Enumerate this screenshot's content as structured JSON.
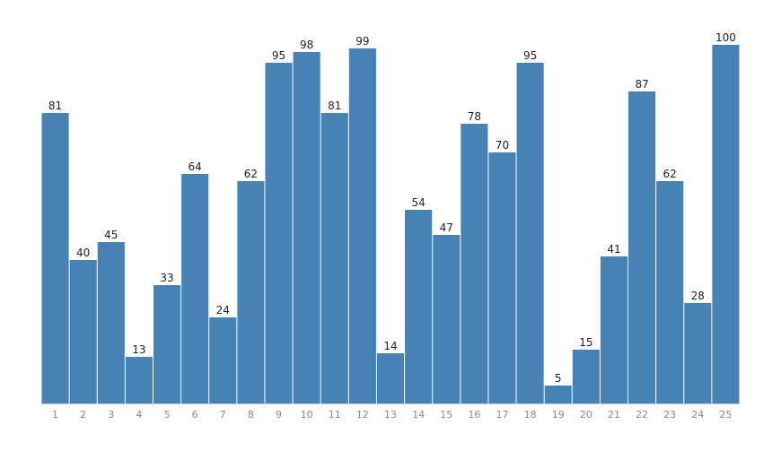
{
  "chart_data": {
    "type": "bar",
    "categories": [
      "1",
      "2",
      "3",
      "4",
      "5",
      "6",
      "7",
      "8",
      "9",
      "10",
      "11",
      "12",
      "13",
      "14",
      "15",
      "16",
      "17",
      "18",
      "19",
      "20",
      "21",
      "22",
      "23",
      "24",
      "25"
    ],
    "values": [
      81,
      40,
      45,
      13,
      33,
      64,
      24,
      62,
      95,
      98,
      81,
      99,
      14,
      54,
      47,
      78,
      70,
      95,
      5,
      15,
      41,
      87,
      62,
      28,
      100
    ],
    "color": "#4682b4",
    "ylim": [
      0,
      100
    ]
  }
}
